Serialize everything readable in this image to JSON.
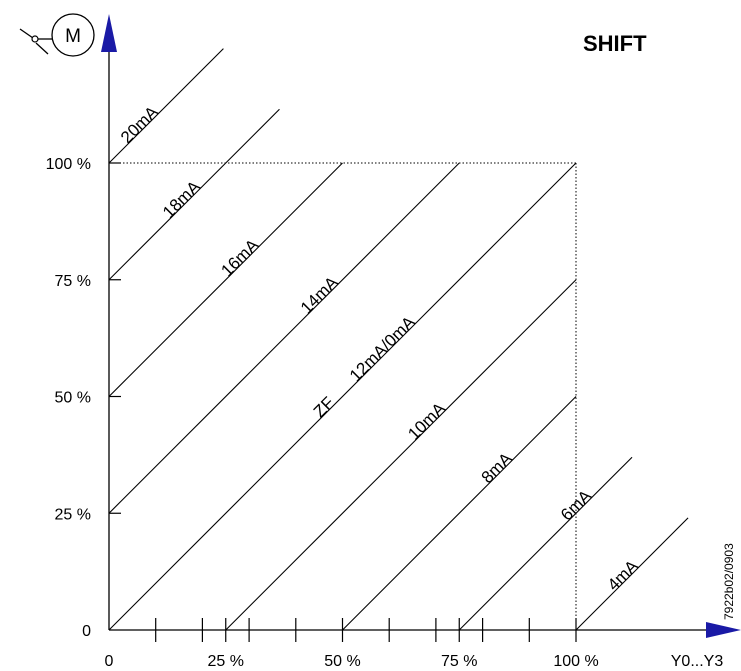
{
  "title": "SHIFT",
  "motor_symbol": {
    "letter": "M",
    "icon": "motor-icon"
  },
  "x_axis": {
    "label": "Y0...Y3",
    "ticks": [
      {
        "value": 0,
        "label": "0"
      },
      {
        "value": 25,
        "label": "25 %"
      },
      {
        "value": 50,
        "label": "50 %"
      },
      {
        "value": 75,
        "label": "75 %"
      },
      {
        "value": 100,
        "label": "100 %"
      }
    ],
    "minor_ticks": [
      10,
      20,
      30,
      40,
      60,
      70,
      80,
      90
    ]
  },
  "y_axis": {
    "ticks": [
      {
        "value": 0,
        "label": "0"
      },
      {
        "value": 25,
        "label": "25 %"
      },
      {
        "value": 50,
        "label": "50 %"
      },
      {
        "value": 75,
        "label": "75 %"
      },
      {
        "value": 100,
        "label": "100 %"
      }
    ]
  },
  "shift_lines": [
    {
      "label": "20mA",
      "offset": 100
    },
    {
      "label": "18mA",
      "offset": 75
    },
    {
      "label": "16mA",
      "offset": 50
    },
    {
      "label": "14mA",
      "offset": 25
    },
    {
      "label": "12mA/0mA",
      "offset": 0
    },
    {
      "label": "10mA",
      "offset": -25
    },
    {
      "label": "8mA",
      "offset": -50
    },
    {
      "label": "6mA",
      "offset": -75
    },
    {
      "label": "4mA",
      "offset": -100
    }
  ],
  "zf_label": "ZF",
  "reference": "7922b02/0903",
  "colors": {
    "arrow": "#1a1aa6",
    "line": "#000000"
  }
}
